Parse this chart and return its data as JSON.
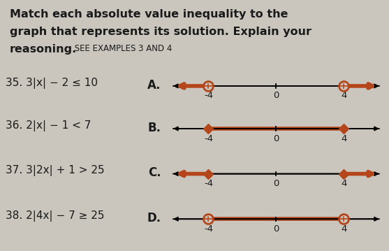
{
  "problems": [
    {
      "num": "35.",
      "expr": "3|x| − 2 ≤ 10",
      "label": "A."
    },
    {
      "num": "36.",
      "expr": "2|x| − 1 < 7",
      "label": "B."
    },
    {
      "num": "37.",
      "expr": "3|2x| + 1 > 25",
      "label": "C."
    },
    {
      "num": "38.",
      "expr": "2|4x| − 7 ≥ 25",
      "label": "D."
    }
  ],
  "graphs": [
    {
      "label": "A.",
      "type": "exterior",
      "points": [
        -4,
        4
      ],
      "open": true,
      "color": "#B5451B"
    },
    {
      "label": "B.",
      "type": "interior",
      "points": [
        -4,
        4
      ],
      "open": false,
      "color": "#B5451B"
    },
    {
      "label": "C.",
      "type": "exterior",
      "points": [
        -4,
        4
      ],
      "open": false,
      "color": "#B5451B"
    },
    {
      "label": "D.",
      "type": "interior",
      "points": [
        -4,
        4
      ],
      "open": true,
      "color": "#B5451B"
    }
  ],
  "tick_labels": [
    -4,
    0,
    4
  ],
  "xlim": [
    -6.2,
    6.2
  ],
  "background_color": "#CAC6BE",
  "text_color": "#1a1a1a",
  "fontsize_title": 11.5,
  "fontsize_label": 11,
  "fontsize_tick": 9.5,
  "title_lines": [
    {
      "text": "Match each absolute value inequality to the",
      "bold": true,
      "small": false
    },
    {
      "text": "graph that represents its solution. Explain your",
      "bold": true,
      "small": false
    },
    {
      "text": "reasoning.",
      "bold": true,
      "small": false,
      "suffix": " SEE EXAMPLES 3 AND 4",
      "suffix_small": true
    }
  ]
}
